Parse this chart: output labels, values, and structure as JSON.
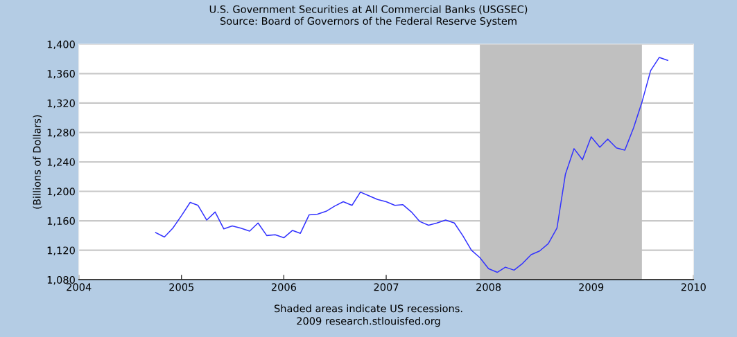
{
  "chart_data": {
    "type": "line",
    "title": "U.S. Government Securities at All Commercial Banks (USGSEC)",
    "subtitle": "Source: Board of Governors of the Federal Reserve System",
    "ylabel": "(Billions of Dollars)",
    "annotations": [
      "Shaded areas indicate US recessions.",
      "2009 research.stlouisfed.org"
    ],
    "x": [
      "2004-10",
      "2004-11",
      "2004-12",
      "2005-01",
      "2005-02",
      "2005-03",
      "2005-04",
      "2005-05",
      "2005-06",
      "2005-07",
      "2005-08",
      "2005-09",
      "2005-10",
      "2005-11",
      "2005-12",
      "2006-01",
      "2006-02",
      "2006-03",
      "2006-04",
      "2006-05",
      "2006-06",
      "2006-07",
      "2006-08",
      "2006-09",
      "2006-10",
      "2006-11",
      "2006-12",
      "2007-01",
      "2007-02",
      "2007-03",
      "2007-04",
      "2007-05",
      "2007-06",
      "2007-07",
      "2007-08",
      "2007-09",
      "2007-10",
      "2007-11",
      "2007-12",
      "2008-01",
      "2008-02",
      "2008-03",
      "2008-04",
      "2008-05",
      "2008-06",
      "2008-07",
      "2008-08",
      "2008-09",
      "2008-10",
      "2008-11",
      "2008-12",
      "2009-01",
      "2009-02",
      "2009-03",
      "2009-04",
      "2009-05",
      "2009-06",
      "2009-07",
      "2009-08",
      "2009-09",
      "2009-10"
    ],
    "series": [
      {
        "color": "#3333ff",
        "values": [
          1144,
          1138,
          1150,
          1167,
          1185,
          1181,
          1161,
          1172,
          1149,
          1153,
          1150,
          1146,
          1157,
          1140,
          1141,
          1137,
          1147,
          1143,
          1168,
          1169,
          1173,
          1180,
          1186,
          1181,
          1199,
          1194,
          1189,
          1186,
          1181,
          1182,
          1172,
          1159,
          1154,
          1157,
          1161,
          1157,
          1140,
          1120,
          1110,
          1095,
          1090,
          1097,
          1093,
          1102,
          1114,
          1119,
          1129,
          1150,
          1223,
          1258,
          1243,
          1274,
          1260,
          1271,
          1259,
          1256,
          1286,
          1321,
          1364,
          1382,
          1378
        ]
      }
    ],
    "xlim": [
      "2004",
      "2010"
    ],
    "xticks": [
      "2004",
      "2005",
      "2006",
      "2007",
      "2008",
      "2009",
      "2010"
    ],
    "ylim": [
      1080,
      1400
    ],
    "yticks": [
      {
        "value": 1080,
        "label": "1,080"
      },
      {
        "value": 1120,
        "label": "1,120"
      },
      {
        "value": 1160,
        "label": "1,160"
      },
      {
        "value": 1200,
        "label": "1,200"
      },
      {
        "value": 1240,
        "label": "1,240"
      },
      {
        "value": 1280,
        "label": "1,280"
      },
      {
        "value": 1320,
        "label": "1,320"
      },
      {
        "value": 1360,
        "label": "1,360"
      },
      {
        "value": 1400,
        "label": "1,400"
      }
    ],
    "bands": [
      {
        "axis": "x",
        "from": "2007-12",
        "to": "2009-07",
        "color": "#c0c0c0"
      }
    ],
    "grid": "y",
    "marker": "none",
    "line_style": "solid"
  }
}
